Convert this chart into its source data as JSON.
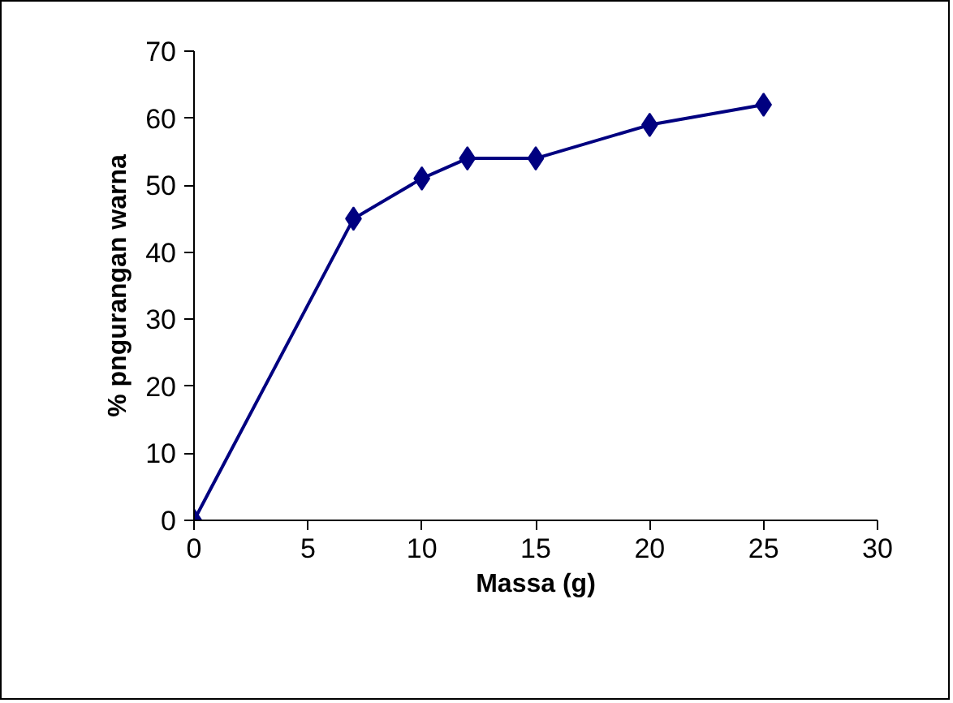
{
  "chart_data": {
    "type": "line",
    "xlabel": "Massa (g)",
    "ylabel": "% pngurangan warna",
    "x": [
      0,
      7,
      10,
      12,
      15,
      20,
      25
    ],
    "series": [
      {
        "color": "#000080",
        "values": [
          0,
          45,
          51,
          54,
          54,
          59,
          62
        ]
      }
    ],
    "xlim": [
      0,
      30
    ],
    "xticks": [
      0,
      5,
      10,
      15,
      20,
      25,
      30
    ],
    "ylim": [
      0,
      70
    ],
    "yticks": [
      0,
      10,
      20,
      30,
      40,
      50,
      60,
      70
    ],
    "grid": false,
    "marker": "diamond",
    "line_style": "solid"
  }
}
